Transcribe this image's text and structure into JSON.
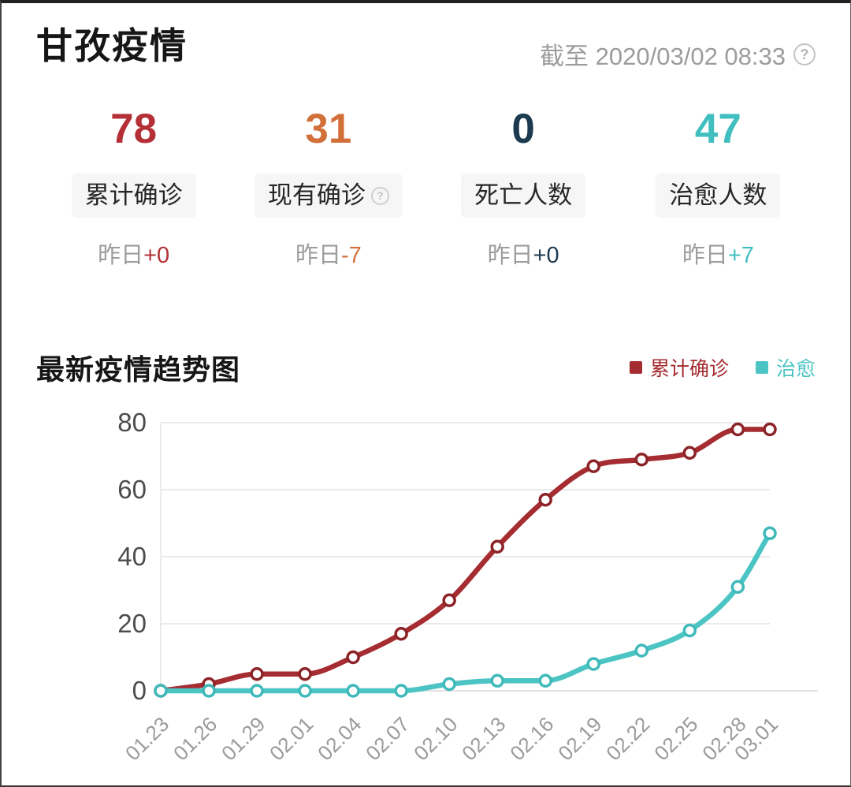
{
  "header": {
    "title": "甘孜疫情",
    "as_of": "截至 2020/03/02 08:33",
    "help_glyph": "?"
  },
  "stats": {
    "cards": [
      {
        "value": "78",
        "label": "累计确诊",
        "delta_prefix": "昨日",
        "delta": "+0",
        "color": "#b43036"
      },
      {
        "value": "31",
        "label": "现有确诊",
        "delta_prefix": "昨日",
        "delta": "-7",
        "color": "#d2703a",
        "help_glyph": "?"
      },
      {
        "value": "0",
        "label": "死亡人数",
        "delta_prefix": "昨日",
        "delta": "+0",
        "color": "#1c3a50"
      },
      {
        "value": "47",
        "label": "治愈人数",
        "delta_prefix": "昨日",
        "delta": "+7",
        "color": "#41bec0"
      }
    ]
  },
  "trend_section": {
    "title": "最新疫情趋势图"
  },
  "chart_data": {
    "type": "line",
    "title": "最新疫情趋势图",
    "x": [
      "01.23",
      "01.26",
      "01.29",
      "02.01",
      "02.04",
      "02.07",
      "02.10",
      "02.13",
      "02.16",
      "02.19",
      "02.22",
      "02.25",
      "02.28",
      "03.01"
    ],
    "day_offsets": [
      0,
      3,
      6,
      9,
      12,
      15,
      18,
      21,
      24,
      27,
      30,
      33,
      36,
      38
    ],
    "yticks": [
      0,
      20,
      40,
      60,
      80
    ],
    "ylim": [
      0,
      80
    ],
    "grid": true,
    "legend_position": "top-right",
    "series": [
      {
        "name": "累计确诊",
        "color": "#a52c31",
        "marker_stroke": "#8c2428",
        "values": [
          0,
          2,
          5,
          5,
          10,
          17,
          27,
          43,
          57,
          67,
          69,
          71,
          78,
          78
        ]
      },
      {
        "name": "治愈",
        "color": "#4cc4c4",
        "marker_stroke": "#3fb9ba",
        "values": [
          0,
          0,
          0,
          0,
          0,
          0,
          2,
          3,
          3,
          8,
          12,
          18,
          31,
          47
        ]
      }
    ],
    "axis": {
      "grid_color": "#eaeaea",
      "baseline_color": "#e2e2e2",
      "ytick_color": "#4c4c4c",
      "xtick_color": "#9a9a9a"
    }
  }
}
